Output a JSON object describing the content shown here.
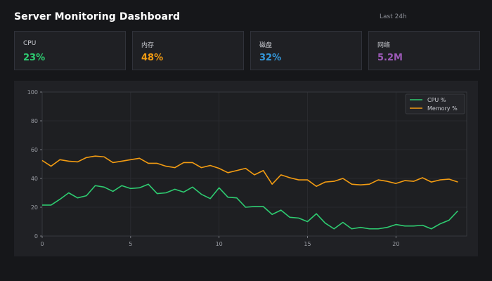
{
  "dashboard": {
    "title": "Server Monitoring Dashboard",
    "time_range": "Last 24h"
  },
  "cards": [
    {
      "label": "CPU",
      "value": "23%",
      "color": "#2ecc71"
    },
    {
      "label": "内存",
      "value": "48%",
      "color": "#f39c12"
    },
    {
      "label": "磁盘",
      "value": "32%",
      "color": "#3498db"
    },
    {
      "label": "网络",
      "value": "5.2M",
      "color": "#9b59b6"
    }
  ],
  "chart_data": {
    "type": "line",
    "title": "",
    "xlabel": "",
    "ylabel": "",
    "xlim": [
      0,
      24
    ],
    "ylim": [
      0,
      100
    ],
    "xticks": [
      0,
      5,
      10,
      15,
      20
    ],
    "yticks": [
      0,
      20,
      40,
      60,
      80,
      100
    ],
    "grid": true,
    "legend_position": "top-right",
    "x": [
      0,
      0.5,
      1,
      1.5,
      2,
      2.5,
      3,
      3.5,
      4,
      4.5,
      5,
      5.5,
      6,
      6.5,
      7,
      7.5,
      8,
      8.5,
      9,
      9.5,
      10,
      10.5,
      11,
      11.5,
      12,
      12.5,
      13,
      13.5,
      14,
      14.5,
      15,
      15.5,
      16,
      16.5,
      17,
      17.5,
      18,
      18.5,
      19,
      19.5,
      20,
      20.5,
      21,
      21.5,
      22,
      22.5,
      23,
      23.5
    ],
    "series": [
      {
        "name": "CPU %",
        "color": "#2ecc71",
        "values": [
          21.5,
          21.5,
          25.5,
          30,
          26.5,
          28,
          35,
          34,
          31,
          35,
          33,
          33.5,
          36,
          29.5,
          30,
          32.5,
          30.5,
          34,
          29,
          26,
          33.5,
          27,
          26.5,
          20,
          20.5,
          20.5,
          15,
          18,
          13,
          12.5,
          10,
          15.5,
          9,
          5,
          9.5,
          5,
          6,
          5,
          5,
          6,
          8,
          7,
          7,
          7.5,
          5,
          8.5,
          11,
          17.5
        ]
      },
      {
        "name": "Memory %",
        "color": "#f39c12",
        "values": [
          52.5,
          48.5,
          53,
          52,
          51.5,
          54.5,
          55.5,
          55,
          51,
          52,
          53,
          54,
          50.5,
          50.5,
          48.5,
          47.5,
          51,
          51,
          47.5,
          49,
          47,
          44,
          45.5,
          47,
          42.5,
          45.5,
          36,
          42.5,
          40.5,
          39,
          39,
          34.5,
          37.5,
          38,
          40,
          36,
          35.5,
          36,
          39,
          38,
          36.5,
          38.5,
          38,
          40.5,
          37.5,
          39,
          39.5,
          37.5
        ]
      }
    ]
  }
}
